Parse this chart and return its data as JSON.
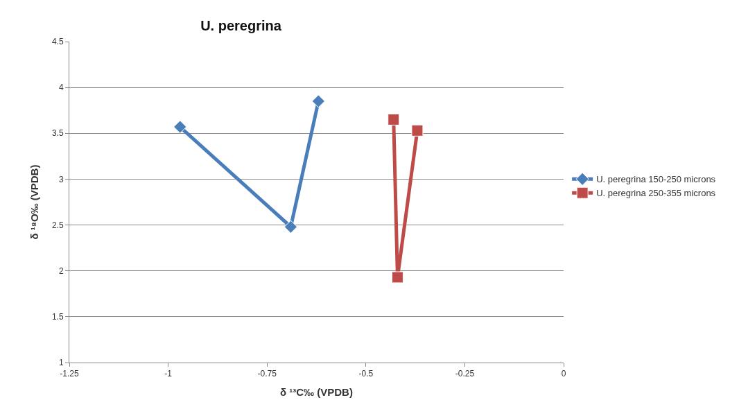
{
  "chart_data": {
    "type": "line",
    "title": "U. peregrina",
    "xlabel": "δ ¹³C‰ (VPDB)",
    "ylabel": "δ ¹⁸O‰ (VPDB)",
    "series": [
      {
        "name": "U. peregrina 150-250 microns",
        "color": "#4a7ebb",
        "marker": "diamond",
        "x": [
          -0.97,
          -0.69,
          -0.62
        ],
        "values": [
          3.57,
          2.48,
          3.85
        ]
      },
      {
        "name": "U. peregrina 250-355 microns",
        "color": "#be4b48",
        "marker": "square",
        "x": [
          -0.43,
          -0.42,
          -0.37
        ],
        "values": [
          3.65,
          1.93,
          3.53
        ]
      }
    ],
    "xlim": [
      -1.25,
      0
    ],
    "xticks": [
      -1.25,
      -1,
      -0.75,
      -0.5,
      -0.25,
      0
    ],
    "ylim": [
      1,
      4.5
    ],
    "yticks": [
      1,
      1.5,
      2,
      2.5,
      3,
      3.5,
      4,
      4.5
    ],
    "grid": "y",
    "legend": "right",
    "line_style": "solid"
  }
}
